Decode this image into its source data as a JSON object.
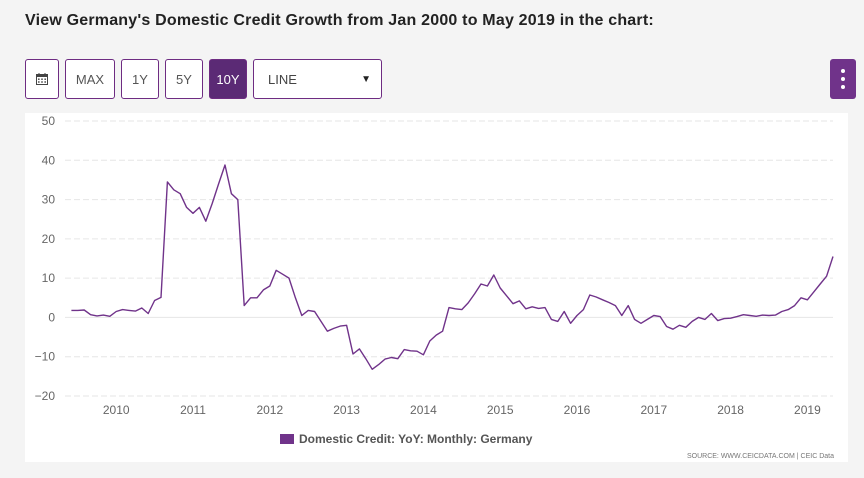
{
  "page": {
    "title": "View Germany's Domestic Credit Growth from Jan 2000 to May 2019 in the chart:"
  },
  "toolbar": {
    "calendar_icon": "calendar-icon",
    "buttons": [
      "MAX",
      "1Y",
      "5Y",
      "10Y"
    ],
    "active": "10Y",
    "chart_type_value": "LINE",
    "menu_icon": "vertical-dots-icon"
  },
  "colors": {
    "accent": "#5b2a75",
    "series": "#70338a",
    "grid": "#e6e6e6"
  },
  "chart_data": {
    "type": "line",
    "y_ticks": [
      "50",
      "40",
      "30",
      "20",
      "10",
      "0",
      "−10",
      "−20"
    ],
    "ylim": [
      -20,
      50
    ],
    "x_ticks": [
      "2010",
      "2011",
      "2012",
      "2013",
      "2014",
      "2015",
      "2016",
      "2017",
      "2018",
      "2019"
    ],
    "xlim": [
      "2009-08",
      "2019-08"
    ],
    "grid": true,
    "legend_position": "bottom-center",
    "series": [
      {
        "name": "Domestic Credit: YoY: Monthly: Germany",
        "x": [
          "2009-09",
          "2009-10",
          "2009-11",
          "2009-12",
          "2010-01",
          "2010-02",
          "2010-03",
          "2010-04",
          "2010-05",
          "2010-06",
          "2010-07",
          "2010-08",
          "2010-09",
          "2010-10",
          "2010-11",
          "2010-12",
          "2011-01",
          "2011-02",
          "2011-03",
          "2011-04",
          "2011-05",
          "2011-06",
          "2011-07",
          "2011-08",
          "2011-09",
          "2011-10",
          "2011-11",
          "2011-12",
          "2012-01",
          "2012-02",
          "2012-03",
          "2012-04",
          "2012-05",
          "2012-06",
          "2012-07",
          "2012-08",
          "2012-09",
          "2012-10",
          "2012-11",
          "2012-12",
          "2013-01",
          "2013-02",
          "2013-03",
          "2013-04",
          "2013-05",
          "2013-06",
          "2013-07",
          "2013-08",
          "2013-09",
          "2013-10",
          "2013-11",
          "2013-12",
          "2014-01",
          "2014-02",
          "2014-03",
          "2014-04",
          "2014-05",
          "2014-06",
          "2014-07",
          "2014-08",
          "2014-09",
          "2014-10",
          "2014-11",
          "2014-12",
          "2015-01",
          "2015-02",
          "2015-03",
          "2015-04",
          "2015-05",
          "2015-06",
          "2015-07",
          "2015-08",
          "2015-09",
          "2015-10",
          "2015-11",
          "2015-12",
          "2016-01",
          "2016-02",
          "2016-03",
          "2016-04",
          "2016-05",
          "2016-06",
          "2016-07",
          "2016-08",
          "2016-09",
          "2016-10",
          "2016-11",
          "2016-12",
          "2017-01",
          "2017-02",
          "2017-03",
          "2017-04",
          "2017-05",
          "2017-06",
          "2017-07",
          "2017-08",
          "2017-09",
          "2017-10",
          "2017-11",
          "2017-12",
          "2018-01",
          "2018-02",
          "2018-03",
          "2018-04",
          "2018-05",
          "2018-06",
          "2018-07",
          "2018-08",
          "2018-09",
          "2018-10",
          "2018-11",
          "2018-12",
          "2019-01",
          "2019-02",
          "2019-03",
          "2019-04",
          "2019-05",
          "2019-06",
          "2019-07",
          "2019-08"
        ],
        "values": [
          1.8,
          1.8,
          1.9,
          0.7,
          0.4,
          0.6,
          0.3,
          1.5,
          2.0,
          1.8,
          1.6,
          2.4,
          1.0,
          4.3,
          5.1,
          34.5,
          32.5,
          31.5,
          28.0,
          26.5,
          28.0,
          24.5,
          29.0,
          34.0,
          38.8,
          31.5,
          30.0,
          3.0,
          5.0,
          5.0,
          7.0,
          8.0,
          12.0,
          11.0,
          10.0,
          5.0,
          0.5,
          1.8,
          1.5,
          -1.0,
          -3.5,
          -2.8,
          -2.2,
          -2.0,
          -9.3,
          -8.0,
          -10.5,
          -13.2,
          -12.0,
          -10.6,
          -10.2,
          -10.5,
          -8.2,
          -8.5,
          -8.6,
          -9.5,
          -6.0,
          -4.5,
          -3.5,
          2.5,
          2.2,
          2.0,
          3.7,
          6.0,
          8.5,
          8.0,
          10.8,
          7.5,
          5.5,
          3.5,
          4.2,
          2.2,
          2.7,
          2.3,
          2.5,
          -0.5,
          -1.0,
          1.5,
          -1.5,
          0.5,
          2.0,
          5.7,
          5.2,
          4.5,
          3.8,
          3.0,
          0.5,
          3.0,
          -0.5,
          -1.5,
          -0.5,
          0.5,
          0.2,
          -2.3,
          -3.0,
          -2.0,
          -2.5,
          -1.0,
          0.0,
          -0.5,
          1.0,
          -0.8,
          -0.3,
          -0.2,
          0.2,
          0.7,
          0.5,
          0.3,
          0.6,
          0.5,
          0.6,
          1.5,
          2.0,
          3.0,
          5.0,
          4.5,
          6.5,
          8.5,
          10.5,
          15.5
        ]
      }
    ],
    "source": "SOURCE: WWW.CEICDATA.COM | CEIC Data"
  }
}
